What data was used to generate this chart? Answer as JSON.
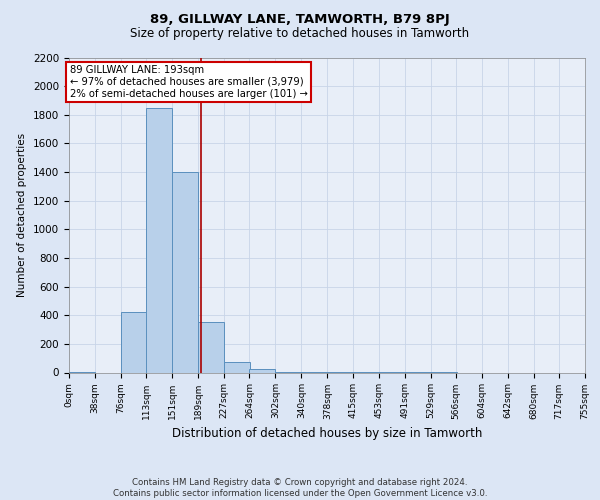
{
  "title": "89, GILLWAY LANE, TAMWORTH, B79 8PJ",
  "subtitle": "Size of property relative to detached houses in Tamworth",
  "xlabel": "Distribution of detached houses by size in Tamworth",
  "ylabel": "Number of detached properties",
  "bin_edges": [
    0,
    38,
    76,
    113,
    151,
    189,
    227,
    264,
    302,
    340,
    378,
    415,
    453,
    491,
    529,
    566,
    604,
    642,
    680,
    717,
    755
  ],
  "bar_heights": [
    5,
    0,
    420,
    1850,
    1400,
    350,
    75,
    25,
    5,
    3,
    2,
    1,
    1,
    1,
    1,
    0,
    0,
    0,
    0,
    0
  ],
  "bar_color": "#b8d0ea",
  "bar_edge_color": "#5a8fbe",
  "property_line_x": 193,
  "property_line_color": "#aa0000",
  "annotation_text": "89 GILLWAY LANE: 193sqm\n← 97% of detached houses are smaller (3,979)\n2% of semi-detached houses are larger (101) →",
  "annotation_box_color": "#cc0000",
  "ylim": [
    0,
    2200
  ],
  "yticks": [
    0,
    200,
    400,
    600,
    800,
    1000,
    1200,
    1400,
    1600,
    1800,
    2000,
    2200
  ],
  "footer_line1": "Contains HM Land Registry data © Crown copyright and database right 2024.",
  "footer_line2": "Contains public sector information licensed under the Open Government Licence v3.0.",
  "bg_color": "#dce6f5",
  "plot_bg_color": "#e8eef8",
  "grid_color": "#c8d4e8"
}
